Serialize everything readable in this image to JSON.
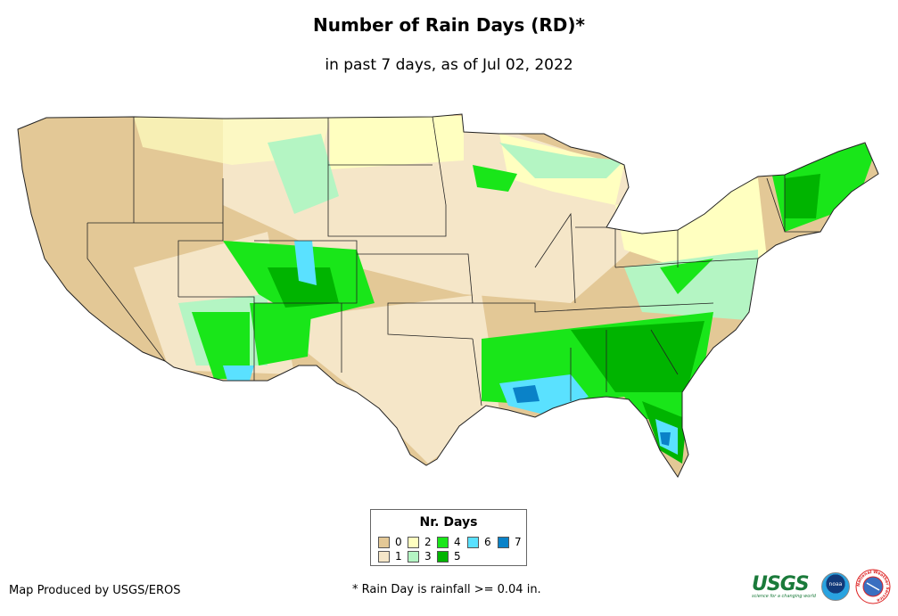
{
  "title": "Number of Rain Days (RD)*",
  "subtitle": "in past 7 days, as of Jul 02, 2022",
  "legend": {
    "title": "Nr. Days",
    "items": [
      {
        "label": "0",
        "color": "#e3c896"
      },
      {
        "label": "1",
        "color": "#f5e6c8"
      },
      {
        "label": "2",
        "color": "#ffffc0"
      },
      {
        "label": "3",
        "color": "#b4f5c3"
      },
      {
        "label": "4",
        "color": "#19e619"
      },
      {
        "label": "5",
        "color": "#00b400"
      },
      {
        "label": "6",
        "color": "#5ae1ff"
      },
      {
        "label": "7",
        "color": "#0a82c8"
      }
    ]
  },
  "footer": {
    "credit": "Map Produced by USGS/EROS",
    "note": "* Rain Day is rainfall >= 0.04 in.",
    "logos": {
      "usgs": "USGS",
      "usgs_tagline": "science for a changing world",
      "noaa": "noaa",
      "nws": "National Weather Service"
    }
  }
}
